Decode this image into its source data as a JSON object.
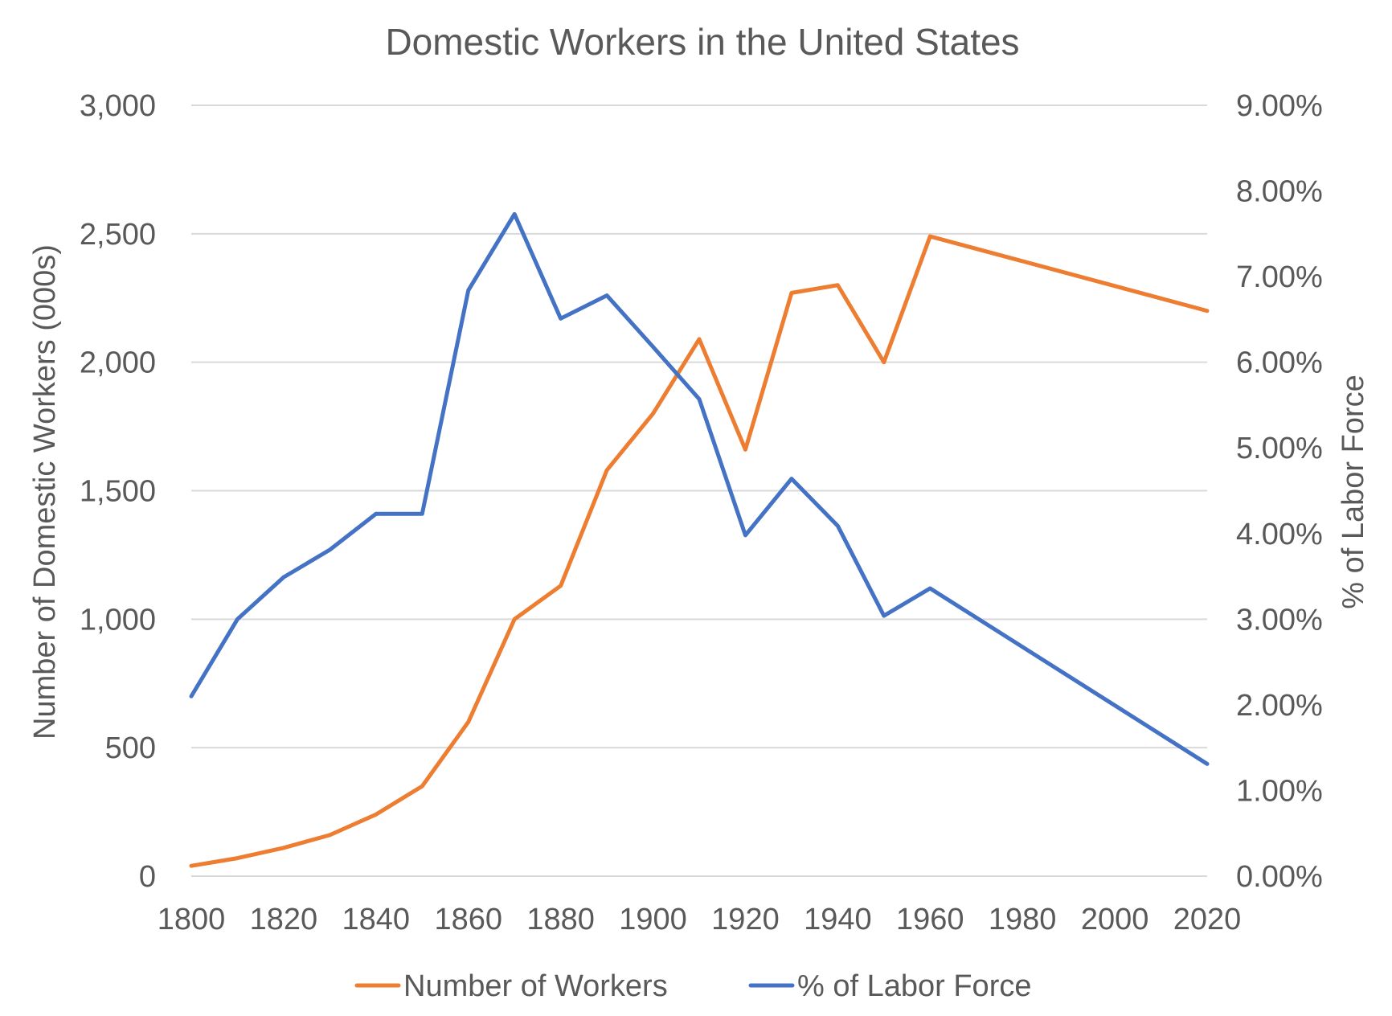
{
  "chart_data": {
    "type": "line",
    "title": "Domestic Workers in the United States",
    "ylabel": "Number of Domestic Workers (000s)",
    "y2label": "% of Labor Force",
    "x": [
      1800,
      1810,
      1820,
      1830,
      1840,
      1850,
      1860,
      1870,
      1880,
      1890,
      1900,
      1910,
      1920,
      1930,
      1940,
      1950,
      1960,
      2020
    ],
    "xlim": [
      1800,
      2020
    ],
    "xticks": [
      1800,
      1820,
      1840,
      1860,
      1880,
      1900,
      1920,
      1940,
      1960,
      1980,
      2000,
      2020
    ],
    "xtick_labels": [
      "1800",
      "1820",
      "1840",
      "1860",
      "1880",
      "1900",
      "1920",
      "1940",
      "1960",
      "1980",
      "2000",
      "2020"
    ],
    "ylim": [
      0,
      3000
    ],
    "yticks": [
      0,
      500,
      1000,
      1500,
      2000,
      2500,
      3000
    ],
    "ytick_labels": [
      "0",
      "500",
      "1,000",
      "1,500",
      "2,000",
      "2,500",
      "3,000"
    ],
    "y2lim": [
      0,
      0.09
    ],
    "y2ticks": [
      0,
      0.01,
      0.02,
      0.03,
      0.04,
      0.05,
      0.06,
      0.07,
      0.08,
      0.09
    ],
    "y2tick_labels": [
      "0.00%",
      "1.00%",
      "2.00%",
      "3.00%",
      "4.00%",
      "5.00%",
      "6.00%",
      "7.00%",
      "8.00%",
      "9.00%"
    ],
    "grid": true,
    "legend_position": "bottom",
    "series": [
      {
        "name": "Number of Workers",
        "axis": "left",
        "color": "#ed7d31",
        "values": [
          40,
          70,
          110,
          160,
          240,
          350,
          600,
          1000,
          1130,
          1580,
          1800,
          2090,
          1660,
          2270,
          2300,
          2000,
          2490,
          2200
        ]
      },
      {
        "name": "% of Labor Force",
        "axis": "right",
        "color": "#4472c4",
        "values": [
          0.021,
          0.03,
          0.0349,
          0.0381,
          0.0423,
          0.0423,
          0.0684,
          0.0773,
          0.0651,
          0.0678,
          0.0618,
          0.0557,
          0.0398,
          0.0464,
          0.0409,
          0.0304,
          0.0336,
          0.0131
        ]
      }
    ]
  }
}
